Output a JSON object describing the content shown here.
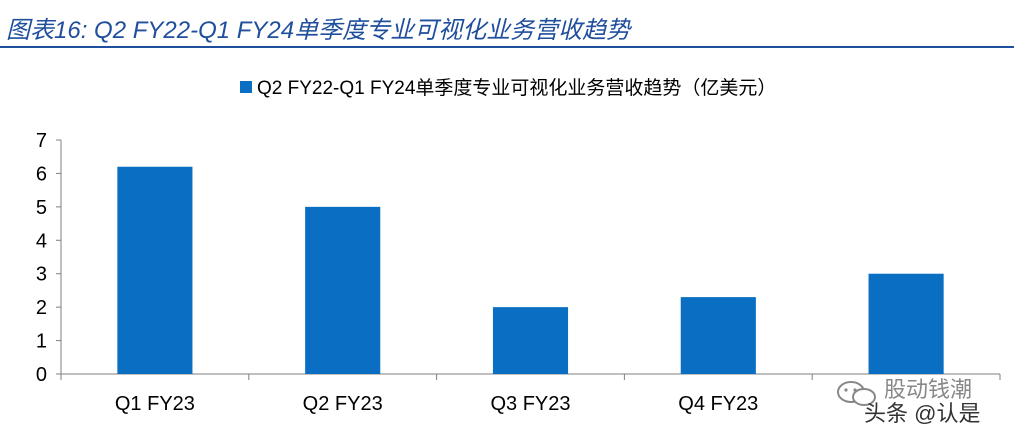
{
  "figure": {
    "title": "图表16:  Q2 FY22-Q1 FY24单季度专业可视化业务营收趋势"
  },
  "chart_data": {
    "type": "bar",
    "legend_label": "Q2 FY22-Q1 FY24单季度专业可视化业务营收趋势（亿美元）",
    "categories": [
      "Q1 FY23",
      "Q2 FY23",
      "Q3 FY23",
      "Q4 FY23",
      ""
    ],
    "values": [
      6.2,
      5.0,
      2.0,
      2.3,
      3.0
    ],
    "ylim": [
      0,
      7
    ],
    "yticks": [
      "0",
      "1",
      "2",
      "3",
      "4",
      "5",
      "6",
      "7"
    ],
    "bar_color": "#0a6fc2",
    "legend_position": "top"
  },
  "watermark": {
    "line1": "股动钱潮",
    "line2": "头条 @认是"
  }
}
